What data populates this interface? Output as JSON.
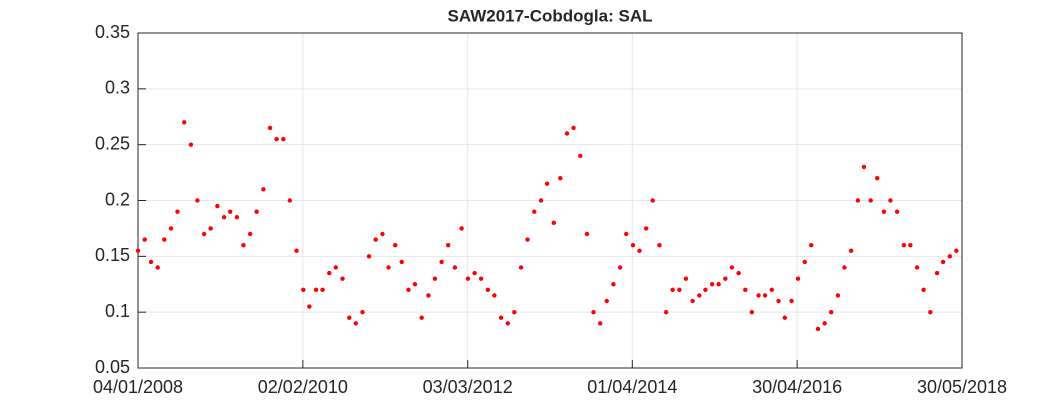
{
  "chart_data": {
    "type": "scatter",
    "title": "SAW2017-Cobdogla: SAL",
    "x": [
      "2008-01-04",
      "2008-02-04",
      "2008-03-04",
      "2008-04-04",
      "2008-05-04",
      "2008-06-04",
      "2008-07-04",
      "2008-08-04",
      "2008-09-04",
      "2008-10-04",
      "2008-11-04",
      "2008-12-04",
      "2009-01-04",
      "2009-02-04",
      "2009-03-04",
      "2009-04-04",
      "2009-05-04",
      "2009-06-04",
      "2009-07-04",
      "2009-08-04",
      "2009-09-04",
      "2009-10-04",
      "2009-11-04",
      "2009-12-04",
      "2010-01-04",
      "2010-02-04",
      "2010-03-04",
      "2010-04-04",
      "2010-05-04",
      "2010-06-04",
      "2010-07-04",
      "2010-08-04",
      "2010-09-04",
      "2010-10-04",
      "2010-11-04",
      "2010-12-04",
      "2011-01-04",
      "2011-02-04",
      "2011-03-04",
      "2011-04-04",
      "2011-05-04",
      "2011-06-04",
      "2011-07-04",
      "2011-08-04",
      "2011-09-04",
      "2011-10-04",
      "2011-11-04",
      "2011-12-04",
      "2012-01-04",
      "2012-02-04",
      "2012-03-04",
      "2012-04-04",
      "2012-05-04",
      "2012-06-04",
      "2012-07-04",
      "2012-08-04",
      "2012-09-04",
      "2012-10-04",
      "2012-11-04",
      "2012-12-04",
      "2013-01-04",
      "2013-02-04",
      "2013-03-04",
      "2013-04-04",
      "2013-05-04",
      "2013-06-04",
      "2013-07-04",
      "2013-08-04",
      "2013-09-04",
      "2013-10-04",
      "2013-11-04",
      "2013-12-04",
      "2014-01-04",
      "2014-02-04",
      "2014-03-04",
      "2014-04-04",
      "2014-05-04",
      "2014-06-04",
      "2014-07-04",
      "2014-08-04",
      "2014-09-04",
      "2014-10-04",
      "2014-11-04",
      "2014-12-04",
      "2015-01-04",
      "2015-02-04",
      "2015-03-04",
      "2015-04-04",
      "2015-05-04",
      "2015-06-04",
      "2015-07-04",
      "2015-08-04",
      "2015-09-04",
      "2015-10-04",
      "2015-11-04",
      "2015-12-04",
      "2016-01-04",
      "2016-02-04",
      "2016-03-04",
      "2016-04-04",
      "2016-05-04",
      "2016-06-04",
      "2016-07-04",
      "2016-08-04",
      "2016-09-04",
      "2016-10-04",
      "2016-11-04",
      "2016-12-04",
      "2017-01-04",
      "2017-02-04",
      "2017-03-04",
      "2017-04-04",
      "2017-05-04",
      "2017-06-04",
      "2017-07-04",
      "2017-08-04",
      "2017-09-04",
      "2017-10-04",
      "2017-11-04",
      "2017-12-04",
      "2018-01-04",
      "2018-02-04",
      "2018-03-04",
      "2018-04-04",
      "2018-05-04"
    ],
    "values": [
      0.155,
      0.165,
      0.145,
      0.14,
      0.165,
      0.175,
      0.19,
      0.27,
      0.25,
      0.2,
      0.17,
      0.175,
      0.195,
      0.185,
      0.19,
      0.185,
      0.16,
      0.17,
      0.19,
      0.21,
      0.265,
      0.255,
      0.255,
      0.2,
      0.155,
      0.12,
      0.105,
      0.12,
      0.12,
      0.135,
      0.14,
      0.13,
      0.095,
      0.09,
      0.1,
      0.15,
      0.165,
      0.17,
      0.14,
      0.16,
      0.145,
      0.12,
      0.125,
      0.095,
      0.115,
      0.13,
      0.145,
      0.16,
      0.14,
      0.175,
      0.13,
      0.135,
      0.13,
      0.12,
      0.115,
      0.095,
      0.09,
      0.1,
      0.14,
      0.165,
      0.19,
      0.2,
      0.215,
      0.18,
      0.22,
      0.26,
      0.265,
      0.24,
      0.17,
      0.1,
      0.09,
      0.11,
      0.125,
      0.14,
      0.17,
      0.16,
      0.155,
      0.175,
      0.2,
      0.16,
      0.1,
      0.12,
      0.12,
      0.13,
      0.11,
      0.115,
      0.12,
      0.125,
      0.125,
      0.13,
      0.14,
      0.135,
      0.12,
      0.1,
      0.115,
      0.115,
      0.12,
      0.11,
      0.095,
      0.11,
      0.13,
      0.145,
      0.16,
      0.085,
      0.09,
      0.1,
      0.115,
      0.14,
      0.155,
      0.2,
      0.23,
      0.2,
      0.22,
      0.19,
      0.2,
      0.19,
      0.16,
      0.16,
      0.14,
      0.12,
      0.1,
      0.135,
      0.145,
      0.15,
      0.155
    ],
    "color": "#ff0000",
    "xlim": [
      "2008-01-04",
      "2018-05-30"
    ],
    "xticks": [
      {
        "value": "2008-01-04",
        "label": "04/01/2008"
      },
      {
        "value": "2010-02-02",
        "label": "02/02/2010"
      },
      {
        "value": "2012-03-03",
        "label": "03/03/2012"
      },
      {
        "value": "2014-04-01",
        "label": "01/04/2014"
      },
      {
        "value": "2016-04-30",
        "label": "30/04/2016"
      },
      {
        "value": "2018-05-30",
        "label": "30/05/2018"
      }
    ],
    "ylim": [
      0.05,
      0.35
    ],
    "yticks": [
      0.05,
      0.1,
      0.15,
      0.2,
      0.25,
      0.3,
      0.35
    ],
    "grid": true
  }
}
